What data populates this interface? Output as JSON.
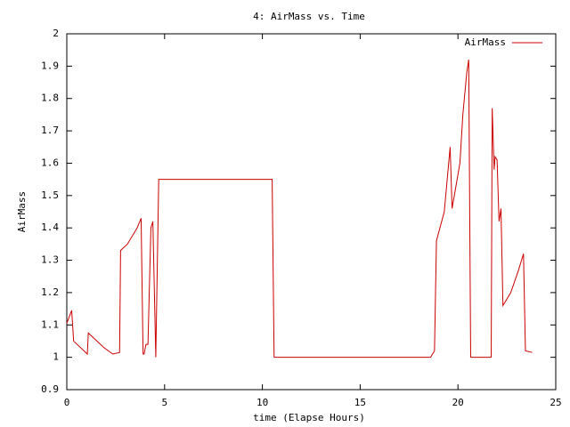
{
  "chart_data": {
    "type": "line",
    "title": "4: AirMass vs. Time",
    "x_label": "time (Elapse Hours)",
    "y_label": "AirMass",
    "legend_position": "top-right",
    "grid": false,
    "xlim": [
      0,
      25
    ],
    "xticks": [
      0,
      5,
      10,
      15,
      20,
      25
    ],
    "ylim": [
      0.9,
      2
    ],
    "yticks": [
      0.9,
      1,
      1.1,
      1.2,
      1.3,
      1.4,
      1.5,
      1.6,
      1.7,
      1.8,
      1.9,
      2
    ],
    "x": [
      0,
      0.25,
      0.35,
      1.05,
      1.1,
      1.9,
      2.35,
      2.7,
      2.75,
      3.1,
      3.6,
      3.8,
      3.9,
      3.95,
      4.05,
      4.15,
      4.3,
      4.4,
      4.55,
      4.7,
      10.5,
      10.6,
      18.6,
      18.8,
      18.9,
      19.3,
      19.6,
      19.7,
      20.1,
      20.25,
      20.45,
      20.55,
      20.65,
      21.7,
      21.75,
      21.85,
      21.9,
      22.0,
      22.1,
      22.2,
      22.3,
      22.7,
      23.1,
      23.35,
      23.45,
      23.8
    ],
    "series": [
      {
        "name": "AirMass",
        "color": "#cc0000",
        "values": [
          1.105,
          1.145,
          1.05,
          1.01,
          1.075,
          1.03,
          1.01,
          1.015,
          1.33,
          1.35,
          1.4,
          1.43,
          1.01,
          1.01,
          1.04,
          1.04,
          1.4,
          1.42,
          1.0,
          1.55,
          1.55,
          1.0,
          1.0,
          1.02,
          1.36,
          1.45,
          1.65,
          1.46,
          1.6,
          1.75,
          1.88,
          1.92,
          1.0,
          1.0,
          1.77,
          1.58,
          1.62,
          1.61,
          1.42,
          1.46,
          1.16,
          1.2,
          1.27,
          1.32,
          1.02,
          1.015
        ]
      }
    ]
  }
}
